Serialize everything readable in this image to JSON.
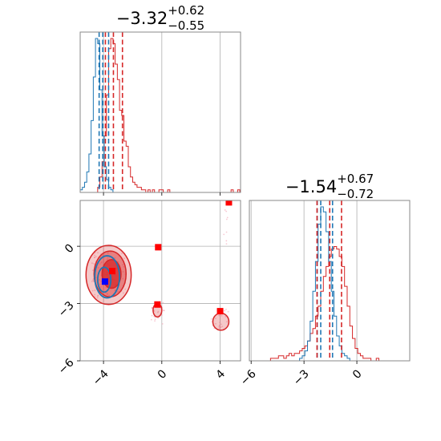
{
  "chart_data": {
    "type": "corner",
    "colors": {
      "red": "#d62728",
      "blue": "#1f77b4",
      "grid": "#b0b0b0",
      "axis": "#888888"
    },
    "panels": [
      {
        "id": "hist-x",
        "type": "histogram",
        "title": {
          "main": "−3.32",
          "sup": "+0.62",
          "sub": "−0.55"
        },
        "xlim": [
          -5.6,
          5.4
        ],
        "grid_x": [
          -4,
          0,
          4
        ],
        "quantiles": {
          "red": [
            -3.87,
            -3.32,
            -2.7
          ],
          "blue": [
            -4.3,
            -4.05,
            -3.65
          ]
        },
        "series": [
          {
            "name": "red",
            "bin_start": -5.6,
            "bin_width": 0.15,
            "counts": [
              0,
              0,
              0,
              0,
              0,
              0,
              0,
              0,
              2,
              6,
              12,
              22,
              38,
              56,
              60,
              58,
              50,
              44,
              32,
              30,
              20,
              18,
              10,
              6,
              4,
              3,
              2,
              2,
              1,
              1,
              0,
              1,
              0,
              1,
              0,
              0,
              1,
              1,
              0,
              0,
              1,
              0,
              0,
              0,
              0,
              0,
              0,
              0,
              0,
              0,
              0,
              0,
              0,
              0,
              0,
              0,
              0,
              0,
              0,
              0,
              0,
              0,
              0,
              0,
              0,
              0,
              0,
              0,
              0,
              1,
              0,
              0,
              1
            ]
          },
          {
            "name": "blue",
            "bin_start": -5.6,
            "bin_width": 0.15,
            "counts": [
              1,
              2,
              4,
              8,
              15,
              28,
              45,
              60,
              58,
              40,
              22,
              10,
              5,
              2,
              1,
              0,
              0,
              0,
              0,
              0
            ]
          }
        ]
      },
      {
        "id": "hist-y",
        "type": "histogram",
        "title": {
          "main": "−1.54",
          "sup": "+0.67",
          "sub": "−0.72"
        },
        "xlim": [
          -6.1,
          3.0
        ],
        "grid_x": [
          -6,
          -3,
          0
        ],
        "tick_labels": [
          "−6",
          "−3",
          "0"
        ],
        "quantiles": {
          "red": [
            -2.26,
            -1.54,
            -0.87
          ],
          "blue": [
            -2.25,
            -2.05,
            -1.38
          ]
        },
        "series": [
          {
            "name": "red",
            "bin_start": -6.1,
            "bin_width": 0.15,
            "counts": [
              0,
              0,
              0,
              0,
              0,
              0,
              0,
              0,
              1,
              1,
              1,
              2,
              2,
              1,
              2,
              3,
              2,
              3,
              3,
              4,
              5,
              6,
              8,
              11,
              13,
              18,
              22,
              28,
              34,
              38,
              42,
              45,
              46,
              45,
              42,
              38,
              30,
              22,
              14,
              9,
              5,
              3,
              2,
              1,
              1,
              1,
              0,
              0,
              1
            ]
          },
          {
            "name": "blue",
            "bin_start": -6.1,
            "bin_width": 0.15,
            "counts": [
              0,
              0,
              0,
              0,
              0,
              0,
              0,
              0,
              0,
              0,
              0,
              0,
              0,
              0,
              0,
              0,
              0,
              0,
              0,
              1,
              2,
              4,
              8,
              16,
              28,
              40,
              55,
              62,
              60,
              52,
              40,
              28,
              18,
              10,
              6,
              3,
              2,
              1
            ]
          }
        ]
      },
      {
        "id": "scatter-2d",
        "type": "contour-scatter",
        "xlim": [
          -5.6,
          5.4
        ],
        "ylim": [
          -6.0,
          2.4
        ],
        "grid_x": [
          -4,
          0,
          4
        ],
        "grid_y": [
          0,
          -3,
          -6
        ],
        "x_tick_labels": [
          "−4",
          "0",
          "4"
        ],
        "y_tick_labels": [
          "0",
          "−3",
          "−6"
        ],
        "markers": {
          "red": [
            [
              4.6,
              2.3
            ],
            [
              -0.25,
              -0.05
            ],
            [
              -0.3,
              -3.05
            ],
            [
              4.0,
              -3.4
            ],
            [
              -3.4,
              -1.3
            ]
          ],
          "blue": [
            [
              -3.9,
              -1.85
            ]
          ]
        },
        "contours": {
          "red": [
            {
              "cx": -3.65,
              "cy": -1.5,
              "rx": 1.55,
              "ry": 1.55,
              "level": 0.25
            },
            {
              "cx": -3.55,
              "cy": -1.45,
              "rx": 1.1,
              "ry": 1.2,
              "level": 0.45
            },
            {
              "cx": -3.45,
              "cy": -1.45,
              "rx": 0.65,
              "ry": 0.75,
              "level": 0.75
            },
            {
              "cx": -0.3,
              "cy": -3.35,
              "rx": 0.3,
              "ry": 0.35,
              "level": 0.25
            },
            {
              "cx": 4.05,
              "cy": -3.95,
              "rx": 0.55,
              "ry": 0.45,
              "level": 0.25
            }
          ],
          "blue": [
            {
              "cx": -3.75,
              "cy": -1.6,
              "rx": 0.85,
              "ry": 1.1
            },
            {
              "cx": -3.95,
              "cy": -1.75,
              "rx": 0.45,
              "ry": 0.65
            }
          ]
        }
      }
    ]
  }
}
